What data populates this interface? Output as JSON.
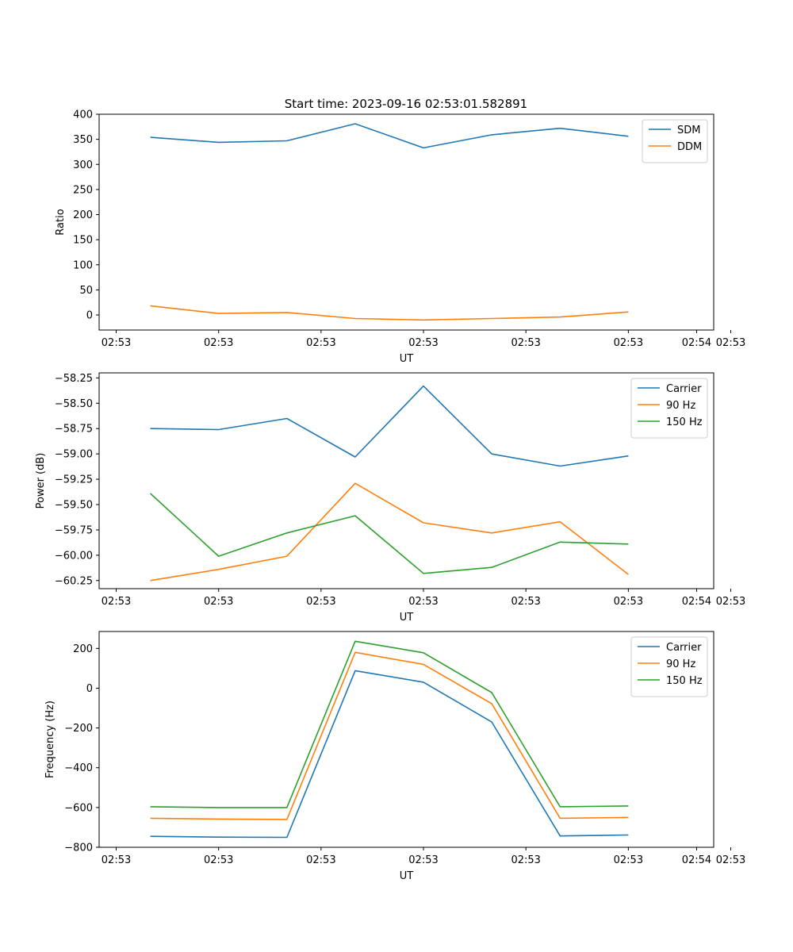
{
  "title": "Start time: 2023-09-16 02:53:01.582891",
  "colors": {
    "c0": "#1f77b4",
    "c1": "#ff7f0e",
    "c2": "#2ca02c"
  },
  "chart_data": [
    {
      "type": "line",
      "xlabel": "UT",
      "ylabel": "Ratio",
      "xticks": [
        "02:53",
        "02:53",
        "02:53",
        "02:53",
        "02:53",
        "02:53",
        "02:53"
      ],
      "xtick_end": "02:54",
      "x": [
        1,
        2,
        3,
        4,
        5,
        6,
        7,
        8
      ],
      "xlim": [
        0.25,
        9.25
      ],
      "ylim": [
        -30,
        400
      ],
      "yticks": [
        0,
        50,
        100,
        150,
        200,
        250,
        300,
        350,
        400
      ],
      "legend": "top-right",
      "series": [
        {
          "name": "SDM",
          "values": [
            354,
            344,
            347,
            381,
            333,
            359,
            372,
            356
          ]
        },
        {
          "name": "DDM",
          "values": [
            18,
            3,
            5,
            -7,
            -10,
            -7,
            -4,
            6
          ]
        }
      ]
    },
    {
      "type": "line",
      "xlabel": "UT",
      "ylabel": "Power (dB)",
      "xticks": [
        "02:53",
        "02:53",
        "02:53",
        "02:53",
        "02:53",
        "02:53",
        "02:53"
      ],
      "xtick_end": "02:54",
      "x": [
        1,
        2,
        3,
        4,
        5,
        6,
        7,
        8
      ],
      "xlim": [
        0.25,
        9.25
      ],
      "ylim": [
        -60.33,
        -58.2
      ],
      "yticks": [
        -60.25,
        -60.0,
        -59.75,
        -59.5,
        -59.25,
        -59.0,
        -58.75,
        -58.5,
        -58.25
      ],
      "ytick_labels": [
        "−60.25",
        "−60.00",
        "−59.75",
        "−59.50",
        "−59.25",
        "−59.00",
        "−58.75",
        "−58.50",
        "−58.25"
      ],
      "legend": "top-right",
      "series": [
        {
          "name": "Carrier",
          "values": [
            -58.75,
            -58.76,
            -58.65,
            -59.03,
            -58.33,
            -59.0,
            -59.12,
            -59.02
          ]
        },
        {
          "name": "90 Hz",
          "values": [
            -60.25,
            -60.14,
            -60.01,
            -59.29,
            -59.68,
            -59.78,
            -59.67,
            -60.19
          ]
        },
        {
          "name": "150 Hz",
          "values": [
            -59.39,
            -60.01,
            -59.78,
            -59.61,
            -60.18,
            -60.12,
            -59.87,
            -59.89
          ]
        }
      ]
    },
    {
      "type": "line",
      "xlabel": "UT",
      "ylabel": "Frequency (Hz)",
      "xticks": [
        "02:53",
        "02:53",
        "02:53",
        "02:53",
        "02:53",
        "02:53",
        "02:53"
      ],
      "xtick_end": "02:54",
      "x": [
        1,
        2,
        3,
        4,
        5,
        6,
        7,
        8
      ],
      "xlim": [
        0.25,
        9.25
      ],
      "ylim": [
        -800,
        285
      ],
      "yticks": [
        -800,
        -600,
        -400,
        -200,
        0,
        200
      ],
      "ytick_labels": [
        "−800",
        "−600",
        "−400",
        "−200",
        "0",
        "200"
      ],
      "legend": "top-right",
      "series": [
        {
          "name": "Carrier",
          "values": [
            -745,
            -749,
            -750,
            88,
            30,
            -170,
            -743,
            -738
          ]
        },
        {
          "name": "90 Hz",
          "values": [
            -654,
            -658,
            -660,
            180,
            120,
            -78,
            -654,
            -650
          ]
        },
        {
          "name": "150 Hz",
          "values": [
            -596,
            -600,
            -600,
            236,
            178,
            -22,
            -596,
            -592
          ]
        }
      ]
    }
  ]
}
